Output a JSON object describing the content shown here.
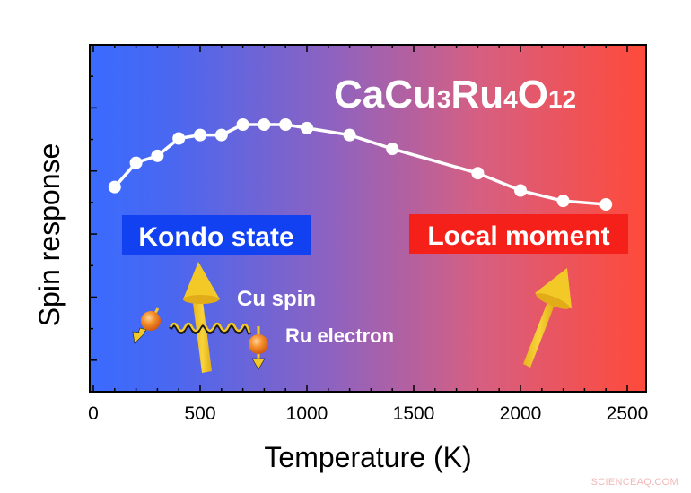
{
  "chart_data": {
    "type": "line",
    "title": "CaCu3Ru4O12",
    "title_parts": [
      {
        "text": "CaCu",
        "sub": false
      },
      {
        "text": "3",
        "sub": true
      },
      {
        "text": "Ru",
        "sub": false
      },
      {
        "text": "4",
        "sub": true
      },
      {
        "text": "O",
        "sub": false
      },
      {
        "text": "12",
        "sub": true
      }
    ],
    "xlabel": "Temperature (K)",
    "ylabel": "Spin response",
    "xlim": [
      0,
      2600
    ],
    "ylim": [
      0,
      100
    ],
    "xticks": [
      0,
      500,
      1000,
      1500,
      2000,
      2500
    ],
    "xtick_labels": [
      "0",
      "500",
      "1000",
      "1500",
      "2000",
      "2500"
    ],
    "yticks_labeled": false,
    "grid": false,
    "legend": null,
    "background_gradient": {
      "start": "#3a6bff",
      "mid": "#9b64b5",
      "end": "#ff4a3a"
    },
    "series": [
      {
        "name": "Spin response",
        "color": "#ffffff",
        "marker": "circle",
        "x": [
          100,
          200,
          300,
          400,
          500,
          600,
          700,
          800,
          900,
          1000,
          1200,
          1400,
          1800,
          2000,
          2200,
          2400
        ],
        "values": [
          59,
          66,
          68,
          73,
          74,
          74,
          77,
          77,
          77,
          76,
          74,
          70,
          63,
          58,
          55,
          54
        ]
      }
    ],
    "annotations": [
      {
        "text": "Kondo state",
        "box_color": "#1141f0",
        "text_color": "#ffffff"
      },
      {
        "text": "Local moment",
        "box_color": "#f5201a",
        "text_color": "#ffffff"
      },
      {
        "text": "Cu spin",
        "text_color": "#ffffff"
      },
      {
        "text": "Ru electron",
        "text_color": "#ffffff"
      }
    ]
  },
  "labels": {
    "title_main": "CaCu3Ru4O12",
    "kondo": "Kondo state",
    "local": "Local moment",
    "cu_spin": "Cu spin",
    "ru_electron": "Ru electron",
    "xlabel": "Temperature (K)",
    "ylabel": "Spin response",
    "watermark": "SCIENCEAQ.COM"
  },
  "colors": {
    "arrow": "#f3c928",
    "electron": "#f07d1e",
    "axis": "#000000"
  }
}
